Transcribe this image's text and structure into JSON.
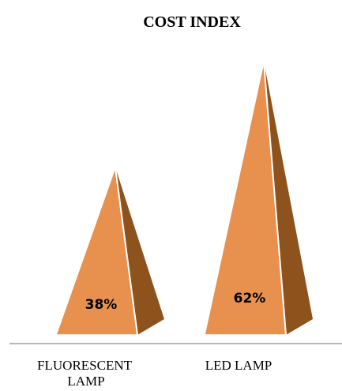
{
  "chart_data": {
    "type": "bar",
    "shape": "pyramid",
    "title": "COST INDEX",
    "categories": [
      "FLUORESCENT LAMP",
      "LED LAMP"
    ],
    "series": [
      {
        "values": [
          38,
          62
        ]
      }
    ],
    "data_labels": [
      "38%",
      "62%"
    ],
    "value_unit": "%",
    "ylim": [
      0,
      62
    ],
    "grid": false,
    "legend": "none",
    "colors": {
      "front": "#e8914f",
      "side": "#8e531d",
      "edge": "#ffffff",
      "axis": "#8c8c8c"
    }
  }
}
